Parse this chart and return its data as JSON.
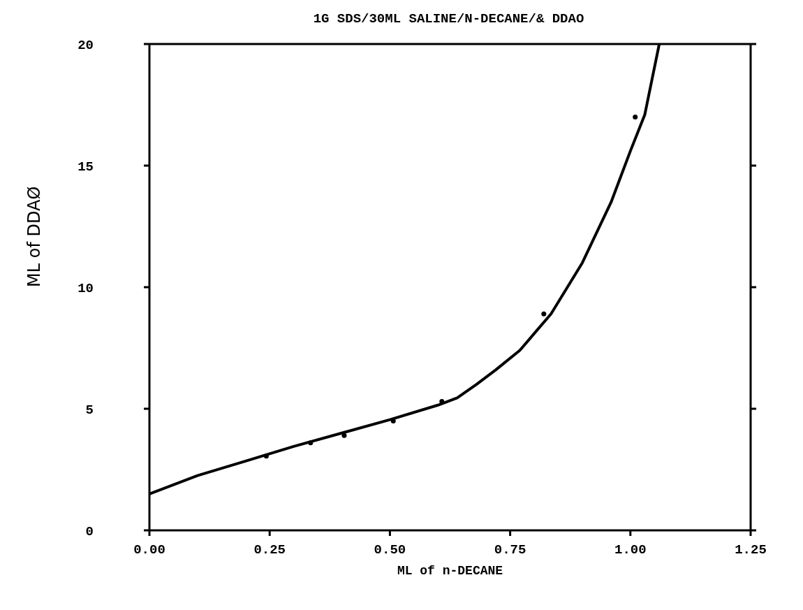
{
  "chart_data": {
    "type": "line",
    "title": "1G SDS/30ML SALINE/N-DECANE/& DDAO",
    "xlabel": "ML of n-DECANE",
    "ylabel": "ML of DDAØ",
    "xlim": [
      0,
      1.25
    ],
    "xticks": [
      {
        "value": 0,
        "label": "0.00"
      },
      {
        "value": 0.25,
        "label": "0.25"
      },
      {
        "value": 0.5,
        "label": "0.50"
      },
      {
        "value": 0.75,
        "label": "0.75"
      },
      {
        "value": 1,
        "label": "1.00"
      },
      {
        "value": 1.25,
        "label": "1.25"
      }
    ],
    "ylim": [
      0,
      20
    ],
    "yticks": [
      0,
      5,
      10,
      15,
      20
    ],
    "line_style": "solid",
    "series": [
      {
        "color": "#000000",
        "marker": "none",
        "x": [
          0,
          0.1,
          0.2,
          0.3,
          0.4,
          0.5,
          0.6,
          0.64,
          0.68,
          0.72,
          0.77,
          0.835,
          0.9,
          0.96,
          1.0,
          1.03,
          1.06
        ],
        "values": [
          1.5,
          2.25,
          2.85,
          3.45,
          4.0,
          4.55,
          5.15,
          5.45,
          6.0,
          6.6,
          7.4,
          8.9,
          11.0,
          13.5,
          15.6,
          17.1,
          20
        ]
      },
      {
        "type": "scatter",
        "color": "#000000",
        "marker": "circle",
        "x": [
          0.243,
          0.335,
          0.405,
          0.507,
          0.608,
          0.82,
          1.01
        ],
        "values": [
          3.05,
          3.6,
          3.9,
          4.5,
          5.3,
          8.9,
          17.0
        ]
      }
    ]
  }
}
